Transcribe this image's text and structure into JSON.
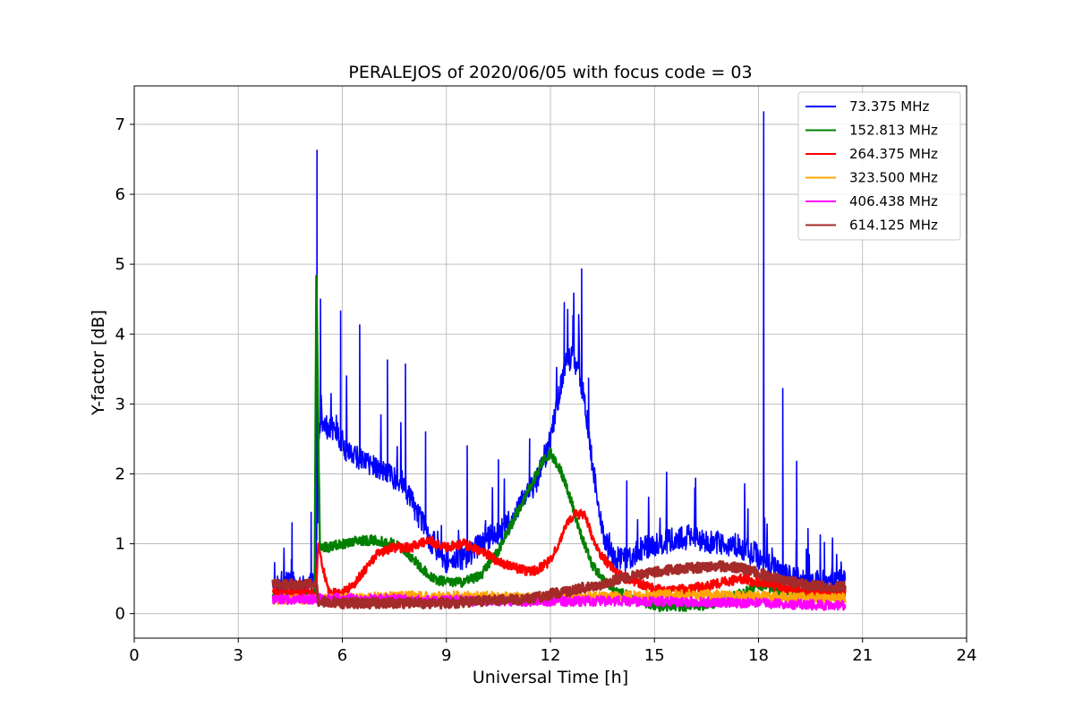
{
  "chart_data": {
    "type": "line",
    "title": "PERALEJOS of 2020/06/05 with focus code = 03",
    "xlabel": "Universal Time [h]",
    "ylabel": "Y-factor [dB]",
    "xlim": [
      0,
      24
    ],
    "ylim": [
      -0.35,
      7.55
    ],
    "xticks": [
      0,
      3,
      6,
      9,
      12,
      15,
      18,
      21,
      24
    ],
    "yticks": [
      0,
      1,
      2,
      3,
      4,
      5,
      6,
      7
    ],
    "grid": true,
    "legend_position": "top-right",
    "series": [
      {
        "name": " 73.375 MHz",
        "color": "#0000ff",
        "x": [
          4.0,
          4.5,
          4.95,
          5.15,
          5.25,
          5.3,
          5.4,
          5.6,
          5.8,
          6.0,
          6.3,
          6.6,
          7.0,
          7.3,
          7.7,
          8.0,
          8.3,
          8.6,
          9.0,
          9.3,
          9.6,
          10.0,
          10.3,
          10.6,
          11.0,
          11.3,
          11.6,
          11.9,
          12.2,
          12.4,
          12.6,
          12.8,
          13.0,
          13.2,
          13.4,
          13.6,
          13.8,
          14.1,
          14.5,
          15.0,
          15.5,
          16.0,
          16.5,
          17.0,
          17.5,
          17.9,
          18.1,
          18.4,
          18.7,
          19.0,
          19.4,
          19.8,
          20.2,
          20.5
        ],
        "values": [
          0.35,
          0.45,
          0.35,
          0.45,
          0.5,
          2.5,
          2.8,
          2.6,
          2.7,
          2.4,
          2.3,
          2.2,
          2.1,
          2.0,
          1.9,
          1.6,
          1.3,
          1.0,
          0.75,
          0.8,
          0.8,
          1.0,
          1.1,
          1.2,
          1.4,
          1.7,
          1.9,
          2.3,
          3.0,
          3.5,
          3.7,
          3.5,
          3.0,
          2.2,
          1.5,
          1.0,
          0.8,
          0.75,
          0.9,
          1.0,
          1.05,
          1.1,
          1.05,
          1.0,
          0.95,
          0.85,
          0.75,
          0.65,
          0.55,
          0.5,
          0.45,
          0.45,
          0.45,
          0.45
        ],
        "spikes": [
          [
            4.55,
            1.3
          ],
          [
            5.1,
            1.45
          ],
          [
            5.27,
            6.63
          ],
          [
            5.37,
            4.5
          ],
          [
            5.95,
            4.33
          ],
          [
            6.5,
            4.13
          ],
          [
            7.3,
            3.63
          ],
          [
            7.82,
            3.57
          ],
          [
            8.4,
            2.6
          ],
          [
            9.6,
            2.4
          ],
          [
            10.5,
            2.2
          ],
          [
            11.4,
            2.5
          ],
          [
            12.4,
            4.45
          ],
          [
            12.9,
            4.93
          ],
          [
            13.1,
            3.37
          ],
          [
            14.2,
            1.9
          ],
          [
            18.15,
            7.18
          ],
          [
            18.7,
            3.22
          ],
          [
            19.1,
            2.18
          ],
          [
            19.9,
            1.02
          ]
        ]
      },
      {
        "name": "152.813 MHz",
        "color": "#008000",
        "x": [
          4.0,
          4.8,
          5.2,
          5.25,
          5.35,
          5.6,
          6.0,
          6.5,
          7.0,
          7.5,
          7.8,
          8.2,
          8.6,
          9.0,
          9.5,
          10.0,
          10.5,
          11.0,
          11.5,
          11.8,
          12.0,
          12.3,
          12.6,
          12.9,
          13.2,
          13.5,
          14.0,
          14.5,
          15.0,
          15.5,
          16.0,
          16.5,
          17.0,
          17.5,
          18.0,
          18.5,
          19.0,
          19.5,
          20.0,
          20.5
        ],
        "values": [
          0.25,
          0.25,
          0.25,
          4.95,
          0.95,
          0.95,
          1.0,
          1.05,
          1.05,
          1.0,
          0.9,
          0.7,
          0.5,
          0.45,
          0.45,
          0.55,
          0.9,
          1.4,
          1.9,
          2.2,
          2.3,
          2.05,
          1.6,
          1.1,
          0.7,
          0.5,
          0.3,
          0.2,
          0.1,
          0.1,
          0.1,
          0.12,
          0.2,
          0.3,
          0.4,
          0.35,
          0.3,
          0.3,
          0.3,
          0.35
        ],
        "spikes": []
      },
      {
        "name": "264.375 MHz",
        "color": "#ff0000",
        "x": [
          4.0,
          5.0,
          5.25,
          5.3,
          5.6,
          6.0,
          6.3,
          6.6,
          7.0,
          7.5,
          8.0,
          8.5,
          9.0,
          9.5,
          10.0,
          10.5,
          11.0,
          11.5,
          12.0,
          12.4,
          12.7,
          13.0,
          13.3,
          13.6,
          14.0,
          14.5,
          15.0,
          16.0,
          17.0,
          17.5,
          18.0,
          18.5,
          19.0,
          19.5,
          20.0,
          20.5
        ],
        "values": [
          0.3,
          0.3,
          0.3,
          1.0,
          0.3,
          0.3,
          0.4,
          0.6,
          0.85,
          0.95,
          0.95,
          1.05,
          0.95,
          1.0,
          0.9,
          0.75,
          0.65,
          0.6,
          0.75,
          1.2,
          1.45,
          1.4,
          0.95,
          0.75,
          0.55,
          0.45,
          0.35,
          0.35,
          0.45,
          0.5,
          0.45,
          0.4,
          0.35,
          0.3,
          0.3,
          0.3
        ],
        "spikes": []
      },
      {
        "name": "323.500 MHz",
        "color": "#ffa500",
        "x": [
          4.0,
          6.0,
          8.0,
          10.0,
          12.0,
          14.0,
          16.0,
          18.0,
          20.0,
          20.5
        ],
        "values": [
          0.2,
          0.22,
          0.25,
          0.25,
          0.22,
          0.25,
          0.28,
          0.25,
          0.22,
          0.22
        ],
        "spikes": []
      },
      {
        "name": "406.438 MHz",
        "color": "#ff00ff",
        "x": [
          4.0,
          6.0,
          8.0,
          10.0,
          12.0,
          14.0,
          16.0,
          18.0,
          20.0,
          20.5
        ],
        "values": [
          0.2,
          0.22,
          0.2,
          0.18,
          0.18,
          0.18,
          0.17,
          0.15,
          0.12,
          0.12
        ],
        "spikes": []
      },
      {
        "name": "614.125 MHz",
        "color": "#a52a2a",
        "x": [
          4.0,
          4.5,
          5.0,
          5.25,
          5.3,
          5.6,
          6.0,
          7.0,
          8.0,
          9.0,
          10.0,
          11.0,
          11.5,
          12.0,
          12.5,
          13.0,
          13.5,
          14.0,
          14.5,
          15.0,
          15.5,
          16.0,
          16.5,
          17.0,
          17.5,
          18.0,
          18.5,
          19.0,
          19.5,
          20.0,
          20.5
        ],
        "values": [
          0.42,
          0.42,
          0.42,
          0.42,
          0.18,
          0.17,
          0.15,
          0.15,
          0.15,
          0.15,
          0.18,
          0.2,
          0.22,
          0.28,
          0.32,
          0.38,
          0.42,
          0.5,
          0.55,
          0.6,
          0.63,
          0.65,
          0.67,
          0.68,
          0.65,
          0.58,
          0.5,
          0.45,
          0.4,
          0.38,
          0.38
        ],
        "spikes": []
      }
    ]
  }
}
